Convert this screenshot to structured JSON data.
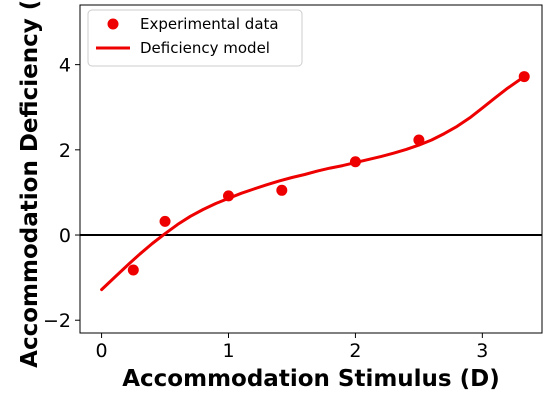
{
  "chart_data": {
    "type": "scatter",
    "title": "",
    "xlabel": "Accommodation Stimulus (D)",
    "ylabel": "Accommodation Deficiency (D)",
    "xlim": [
      -0.17,
      3.47
    ],
    "ylim": [
      -2.3,
      5.4
    ],
    "xticks": [
      0,
      1,
      2,
      3
    ],
    "yticks": [
      -2,
      0,
      2,
      4
    ],
    "grid": false,
    "legend_position": "top-left",
    "reference_line": {
      "y": 0,
      "color": "#000000"
    },
    "series": [
      {
        "name": "Experimental data",
        "kind": "scatter",
        "color": "#ee0000",
        "x": [
          0.25,
          0.5,
          1.0,
          1.42,
          2.0,
          2.5,
          3.33
        ],
        "y": [
          -0.82,
          0.32,
          0.92,
          1.05,
          1.72,
          2.23,
          3.72
        ]
      },
      {
        "name": "Deficiency model",
        "kind": "line",
        "color": "#ee0000",
        "x": [
          0.0,
          0.1,
          0.2,
          0.3,
          0.4,
          0.5,
          0.6,
          0.7,
          0.8,
          0.9,
          1.0,
          1.1,
          1.2,
          1.3,
          1.4,
          1.5,
          1.6,
          1.7,
          1.8,
          1.9,
          2.0,
          2.1,
          2.2,
          2.3,
          2.4,
          2.5,
          2.6,
          2.7,
          2.8,
          2.9,
          3.0,
          3.1,
          3.2,
          3.33
        ],
        "y": [
          -1.28,
          -1.0,
          -0.72,
          -0.45,
          -0.2,
          0.03,
          0.25,
          0.44,
          0.6,
          0.74,
          0.86,
          0.98,
          1.08,
          1.18,
          1.27,
          1.35,
          1.42,
          1.5,
          1.57,
          1.63,
          1.7,
          1.77,
          1.84,
          1.92,
          2.01,
          2.11,
          2.23,
          2.38,
          2.55,
          2.75,
          2.98,
          3.22,
          3.45,
          3.72
        ]
      }
    ]
  }
}
